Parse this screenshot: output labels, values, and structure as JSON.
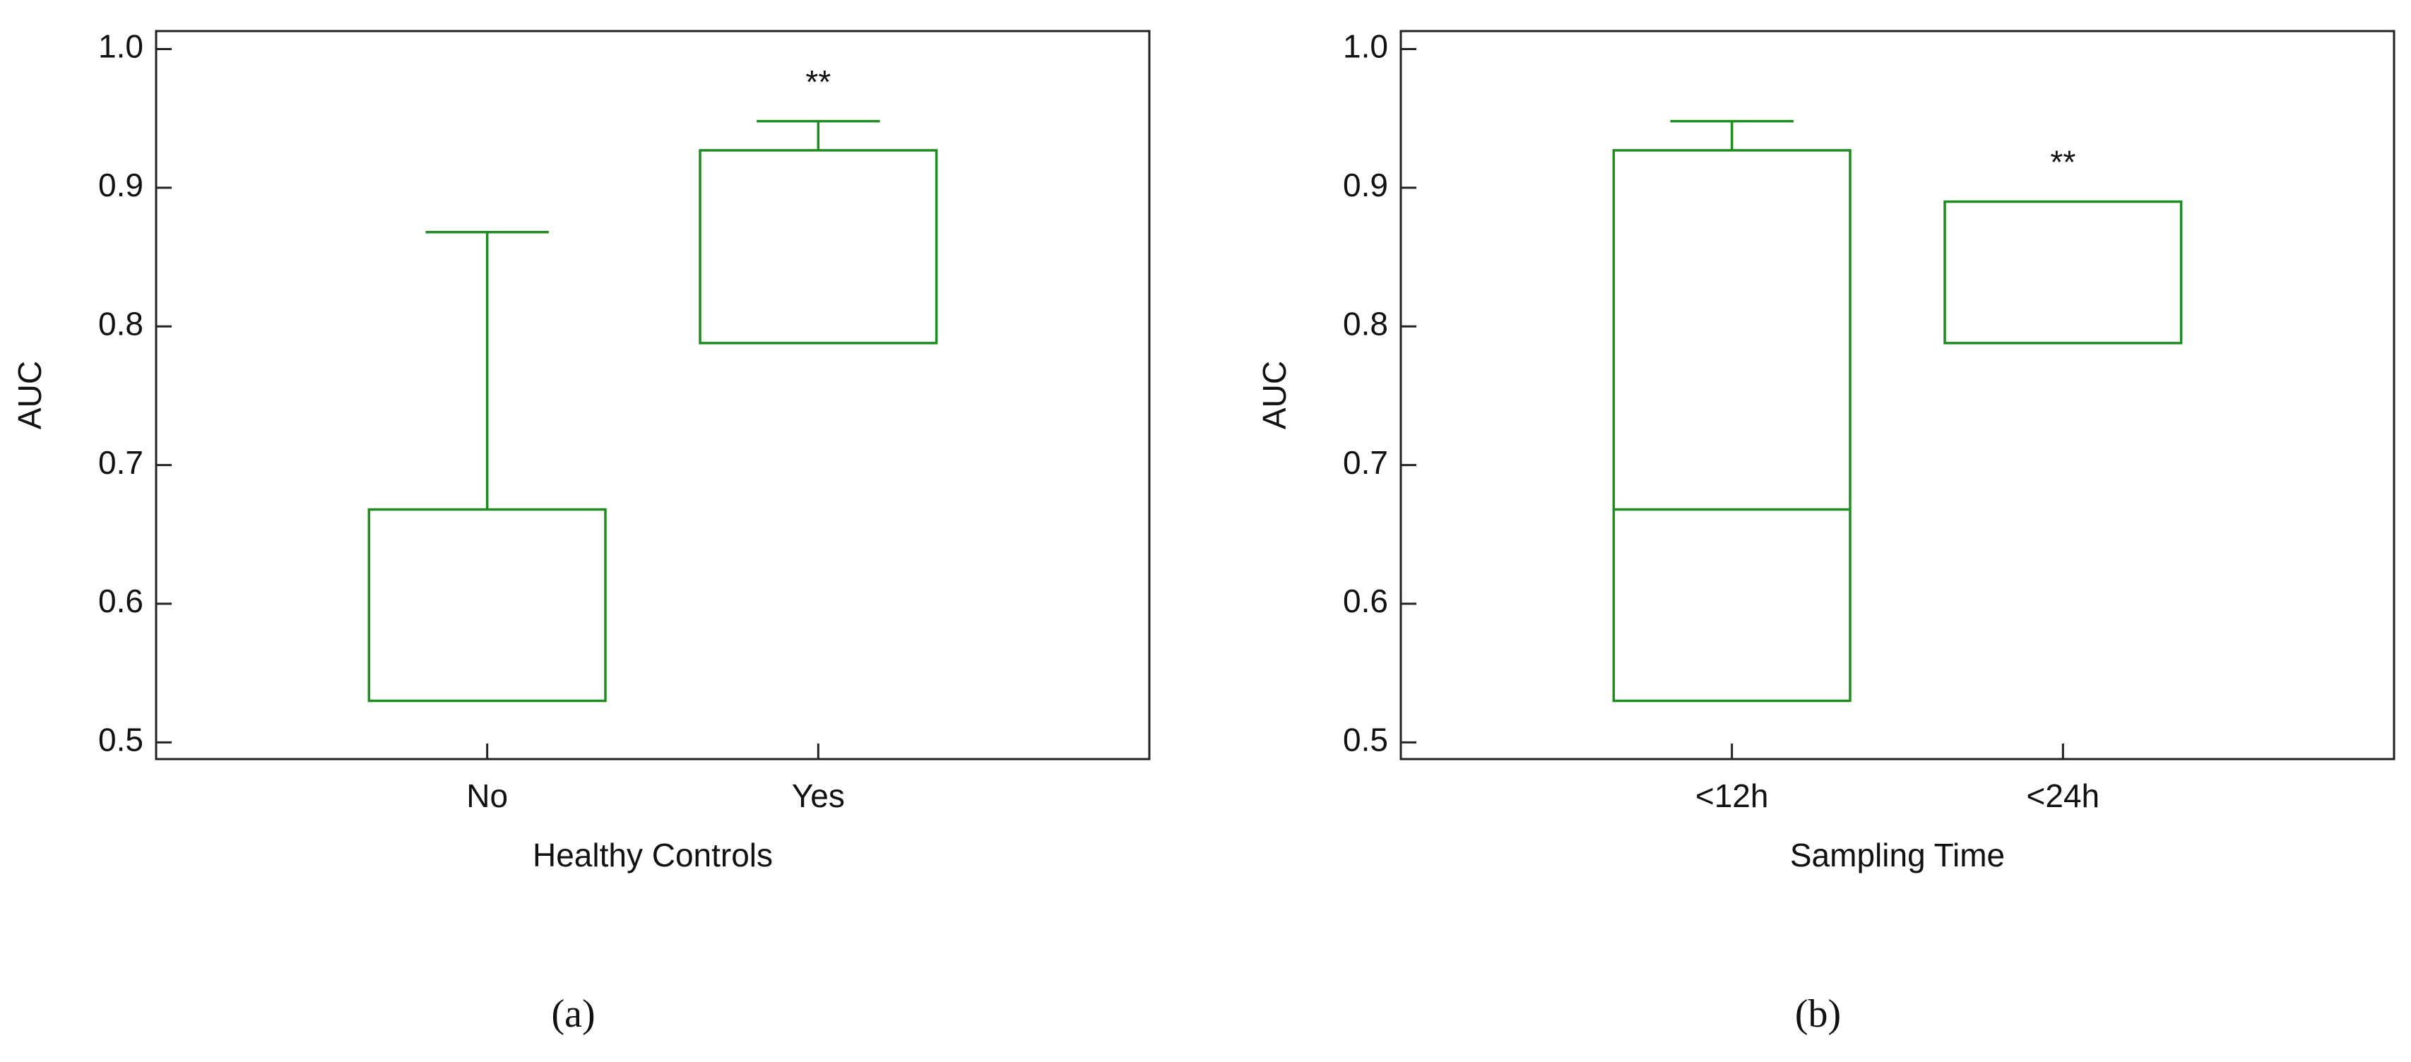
{
  "chart_data": [
    {
      "type": "box",
      "panel_label": "(a)",
      "xlabel": "Healthy Controls",
      "ylabel": "AUC",
      "categories": [
        "No",
        "Yes"
      ],
      "color": "#1e8c1e",
      "boxes": [
        {
          "whisker_low": 0.53,
          "q1": 0.53,
          "median": null,
          "q3": 0.668,
          "whisker_high": 0.868
        },
        {
          "whisker_low": 0.788,
          "q1": 0.788,
          "median": null,
          "q3": 0.927,
          "whisker_high": 0.948
        }
      ],
      "annotations": [
        {
          "text": "**",
          "category": 1
        }
      ],
      "ylim": [
        0.488,
        1.013
      ],
      "yticks": [
        0.5,
        0.6,
        0.7,
        0.8,
        0.9,
        {
          "value": 1,
          "label": "1.0"
        }
      ]
    },
    {
      "type": "box",
      "panel_label": "(b)",
      "xlabel": "Sampling Time",
      "ylabel": "AUC",
      "categories": [
        "<12h",
        "<24h"
      ],
      "color": "#1e8c1e",
      "boxes": [
        {
          "whisker_low": 0.53,
          "q1": 0.53,
          "median": 0.668,
          "q3": 0.927,
          "whisker_high": 0.948
        },
        {
          "whisker_low": 0.788,
          "q1": 0.788,
          "median": null,
          "q3": 0.89,
          "whisker_high": 0.89
        }
      ],
      "annotations": [
        {
          "text": "**",
          "category": 1
        }
      ],
      "ylim": [
        0.488,
        1.013
      ],
      "yticks": [
        0.5,
        0.6,
        0.7,
        0.8,
        0.9,
        {
          "value": 1,
          "label": "1.0"
        }
      ]
    }
  ]
}
